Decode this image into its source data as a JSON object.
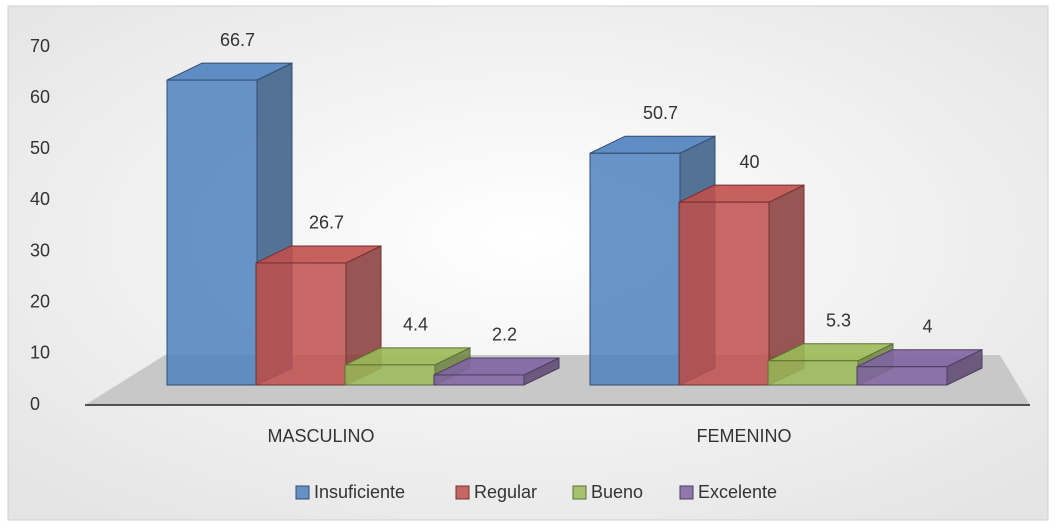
{
  "chart_data": {
    "type": "bar3d",
    "categories": [
      "MASCULINO",
      "FEMENINO"
    ],
    "series": [
      {
        "name": "Insuficiente",
        "color": "#4f81bd",
        "values": [
          66.7,
          50.7
        ]
      },
      {
        "name": "Regular",
        "color": "#c0504d",
        "values": [
          26.7,
          40
        ]
      },
      {
        "name": "Bueno",
        "color": "#9bbb59",
        "values": [
          4.4,
          5.3
        ]
      },
      {
        "name": "Excelente",
        "color": "#8064a2",
        "values": [
          2.2,
          4
        ]
      }
    ],
    "ylim": [
      0,
      70
    ],
    "yticks": [
      0,
      10,
      20,
      30,
      40,
      50,
      60,
      70
    ],
    "legend": "bottom"
  }
}
